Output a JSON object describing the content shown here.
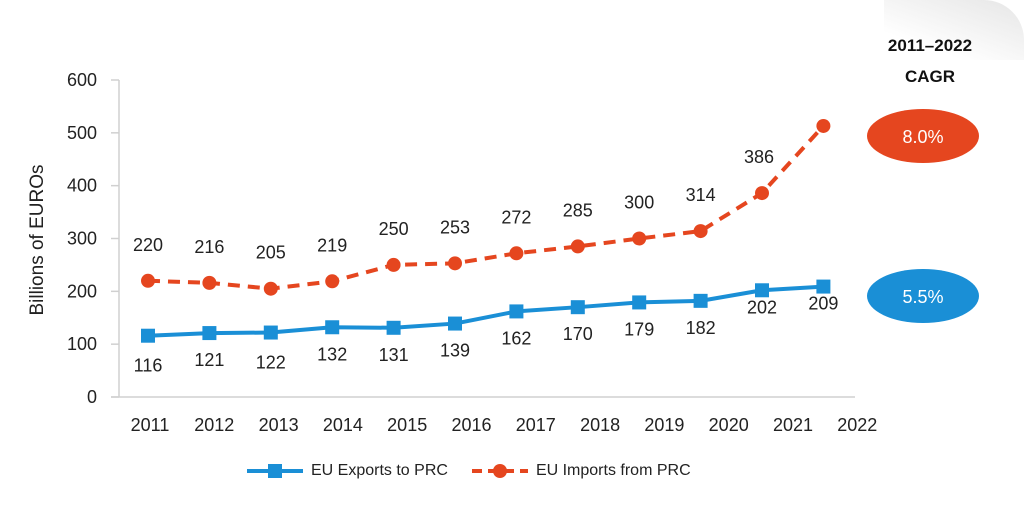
{
  "chart_data": {
    "type": "line",
    "title": "",
    "xlabel": "",
    "ylabel": "Billions of EUROs",
    "ylim": [
      0,
      600
    ],
    "yticks": [
      0,
      100,
      200,
      300,
      400,
      500,
      600
    ],
    "categories": [
      "2011",
      "2012",
      "2013",
      "2014",
      "2015",
      "2016",
      "2017",
      "2018",
      "2019",
      "2020",
      "2021",
      "2022"
    ],
    "grid": false,
    "legend_position": "bottom",
    "series": [
      {
        "name": "EU Exports to PRC",
        "color": "#1a8fd6",
        "style": "solid",
        "marker": "square",
        "values": [
          116,
          121,
          122,
          132,
          131,
          139,
          162,
          170,
          179,
          182,
          202,
          209
        ],
        "labels": [
          "116",
          "121",
          "122",
          "132",
          "131",
          "139",
          "162",
          "170",
          "179",
          "182",
          "202",
          "209"
        ],
        "label_position": "below"
      },
      {
        "name": "EU Imports from PRC",
        "color": "#e5461f",
        "style": "dashed",
        "marker": "circle",
        "values": [
          220,
          216,
          205,
          219,
          250,
          253,
          272,
          285,
          300,
          314,
          386,
          513
        ],
        "labels": [
          "220",
          "216",
          "205",
          "219",
          "250",
          "253",
          "272",
          "285",
          "300",
          "314",
          "386",
          ""
        ],
        "label_position": "above"
      }
    ],
    "annotations": {
      "cagr_title_line1": "2011–2022",
      "cagr_title_line2": "CAGR",
      "imports_cagr": "8.0%",
      "exports_cagr": "5.5%"
    }
  }
}
